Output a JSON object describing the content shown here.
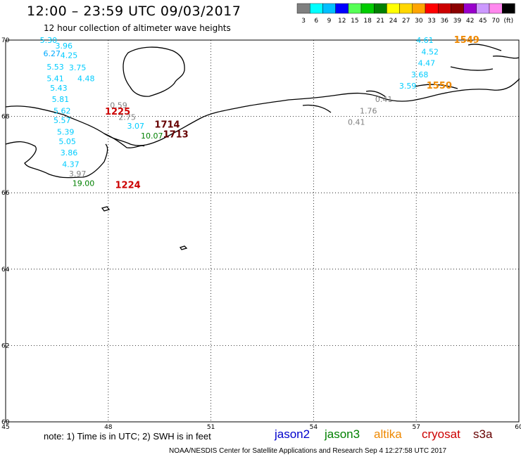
{
  "header": {
    "title": "12:00 – 23:59 UTC 09/03/2017",
    "subtitle": "12 hour collection of altimeter wave heights"
  },
  "color_scale": {
    "labels": [
      "3",
      "6",
      "9",
      "12",
      "15",
      "18",
      "21",
      "24",
      "27",
      "30",
      "33",
      "36",
      "39",
      "42",
      "45",
      "70",
      "(ft)"
    ],
    "colors": [
      "#7f7f7f",
      "#00ffff",
      "#00bfff",
      "#0000ff",
      "#55ff55",
      "#00cc00",
      "#008000",
      "#ffff00",
      "#ffd700",
      "#ffa500",
      "#ff0000",
      "#cc0000",
      "#8b0000",
      "#9900cc",
      "#cc99ff",
      "#ff88ee",
      "#000000"
    ]
  },
  "axes": {
    "lon_ticks": [
      "45",
      "48",
      "51",
      "54",
      "57",
      "60"
    ],
    "lat_ticks": [
      "70",
      "68",
      "66",
      "64",
      "62",
      "60"
    ]
  },
  "chart_data": {
    "type": "scatter",
    "xlabel": "",
    "ylabel": "",
    "xlim": [
      45,
      60
    ],
    "ylim": [
      60,
      70
    ],
    "labels": [
      {
        "text": "5.30",
        "lon": 46.0,
        "lat": 70.0,
        "color": "#00ccff"
      },
      {
        "text": "3.96",
        "lon": 46.45,
        "lat": 69.85,
        "color": "#00ccff"
      },
      {
        "text": "6.27",
        "lon": 46.1,
        "lat": 69.65,
        "color": "#00aaff"
      },
      {
        "text": "4.25",
        "lon": 46.6,
        "lat": 69.6,
        "color": "#00ccff"
      },
      {
        "text": "5.53",
        "lon": 46.2,
        "lat": 69.3,
        "color": "#00ccff"
      },
      {
        "text": "3.75",
        "lon": 46.85,
        "lat": 69.28,
        "color": "#00ccff"
      },
      {
        "text": "5.41",
        "lon": 46.2,
        "lat": 69.0,
        "color": "#00ccff"
      },
      {
        "text": "4.48",
        "lon": 47.1,
        "lat": 69.0,
        "color": "#00ccff"
      },
      {
        "text": "5.43",
        "lon": 46.3,
        "lat": 68.75,
        "color": "#00ccff"
      },
      {
        "text": "5.81",
        "lon": 46.35,
        "lat": 68.45,
        "color": "#00ccff"
      },
      {
        "text": "0.59",
        "lon": 48.05,
        "lat": 68.3,
        "color": "#808080"
      },
      {
        "text": "5.62",
        "lon": 46.4,
        "lat": 68.15,
        "color": "#00ccff"
      },
      {
        "text": "1225",
        "lon": 47.9,
        "lat": 68.12,
        "color": "#cc0000",
        "bold": true
      },
      {
        "text": "2.75",
        "lon": 48.3,
        "lat": 67.98,
        "color": "#808080"
      },
      {
        "text": "5.57",
        "lon": 46.4,
        "lat": 67.9,
        "color": "#00ccff"
      },
      {
        "text": "1714",
        "lon": 49.35,
        "lat": 67.78,
        "color": "#660000",
        "bold": true
      },
      {
        "text": "3.07",
        "lon": 48.55,
        "lat": 67.75,
        "color": "#00ccff"
      },
      {
        "text": "5.39",
        "lon": 46.5,
        "lat": 67.6,
        "color": "#00ccff"
      },
      {
        "text": "10.07",
        "lon": 48.95,
        "lat": 67.5,
        "color": "#008000"
      },
      {
        "text": "1713",
        "lon": 49.6,
        "lat": 67.52,
        "color": "#660000",
        "bold": true
      },
      {
        "text": "5.05",
        "lon": 46.55,
        "lat": 67.35,
        "color": "#00ccff"
      },
      {
        "text": "3.86",
        "lon": 46.6,
        "lat": 67.05,
        "color": "#00ccff"
      },
      {
        "text": "4.37",
        "lon": 46.65,
        "lat": 66.75,
        "color": "#00ccff"
      },
      {
        "text": "3.97",
        "lon": 46.85,
        "lat": 66.5,
        "color": "#808080"
      },
      {
        "text": "19.00",
        "lon": 46.95,
        "lat": 66.25,
        "color": "#008000"
      },
      {
        "text": "1224",
        "lon": 48.2,
        "lat": 66.2,
        "color": "#cc0000",
        "bold": true
      },
      {
        "text": "4.61",
        "lon": 57.0,
        "lat": 70.0,
        "color": "#00ccff"
      },
      {
        "text": "1549",
        "lon": 58.1,
        "lat": 70.0,
        "color": "#ee8800",
        "bold": true
      },
      {
        "text": "4.52",
        "lon": 57.15,
        "lat": 69.7,
        "color": "#00ccff"
      },
      {
        "text": "4.47",
        "lon": 57.05,
        "lat": 69.4,
        "color": "#00ccff"
      },
      {
        "text": "3.68",
        "lon": 56.85,
        "lat": 69.1,
        "color": "#00ccff"
      },
      {
        "text": "3.59",
        "lon": 56.5,
        "lat": 68.8,
        "color": "#00ccff"
      },
      {
        "text": "1550",
        "lon": 57.3,
        "lat": 68.8,
        "color": "#ee8800",
        "bold": true
      },
      {
        "text": "0.41",
        "lon": 55.8,
        "lat": 68.45,
        "color": "#808080"
      },
      {
        "text": "1.76",
        "lon": 55.35,
        "lat": 68.15,
        "color": "#808080"
      },
      {
        "text": "0.41",
        "lon": 55.0,
        "lat": 67.85,
        "color": "#808080"
      }
    ]
  },
  "footer": {
    "note": "note:  1) Time is in UTC;  2) SWH is in feet",
    "credit": "NOAA/NESDIS Center for Satellite Applications and Research     Sep  4 12:27:58 UTC 2017",
    "legend": [
      {
        "name": "jason2",
        "color": "#0000cc"
      },
      {
        "name": "jason3",
        "color": "#008000"
      },
      {
        "name": "altika",
        "color": "#ee8800"
      },
      {
        "name": "cryosat",
        "color": "#cc0000"
      },
      {
        "name": "s3a",
        "color": "#660000"
      }
    ]
  }
}
